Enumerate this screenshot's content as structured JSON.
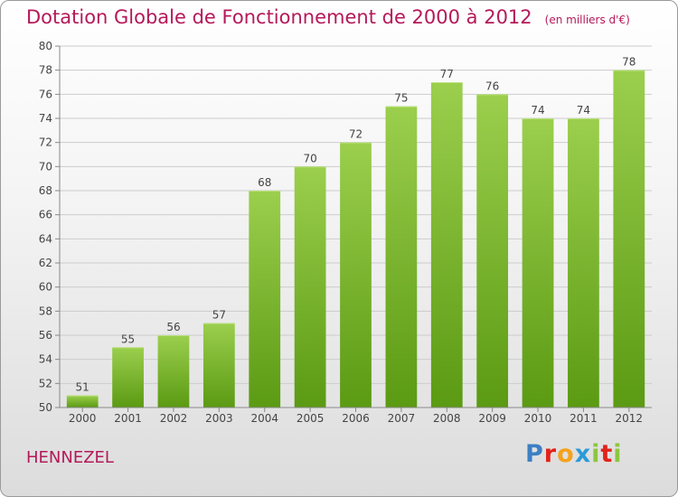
{
  "header": {
    "title": "Dotation Globale de Fonctionnement de 2000 à 2012",
    "subtitle": "(en milliers d'€)"
  },
  "footer": {
    "city": "HENNEZEL",
    "brand": "Proxiti",
    "brand_letters": [
      {
        "ch": "P",
        "color": "#3c7fc4"
      },
      {
        "ch": "r",
        "color": "#e2231a"
      },
      {
        "ch": "o",
        "color": "#f5a21b"
      },
      {
        "ch": "x",
        "color": "#2c9ad8"
      },
      {
        "ch": "i",
        "color": "#8cc63f"
      },
      {
        "ch": "t",
        "color": "#e2231a"
      },
      {
        "ch": "i",
        "color": "#8cc63f"
      }
    ]
  },
  "colors": {
    "accent": "#b5195a",
    "bar_top": "#9bcf4d",
    "bar_bottom": "#5b9a13",
    "grid": "#cccccc"
  },
  "chart_data": {
    "type": "bar",
    "categories": [
      "2000",
      "2001",
      "2002",
      "2003",
      "2004",
      "2005",
      "2006",
      "2007",
      "2008",
      "2009",
      "2010",
      "2011",
      "2012"
    ],
    "values": [
      51,
      55,
      56,
      57,
      68,
      70,
      72,
      75,
      77,
      76,
      74,
      74,
      78
    ],
    "ylim": [
      50,
      80
    ],
    "yticks": [
      50,
      52,
      54,
      56,
      58,
      60,
      62,
      64,
      66,
      68,
      70,
      72,
      74,
      76,
      78,
      80
    ],
    "grid": true,
    "data_labels": true
  }
}
